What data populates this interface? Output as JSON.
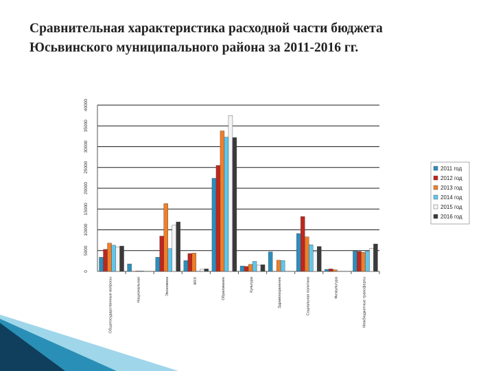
{
  "slide": {
    "title_line1": "Сравнительная характеристика расходной части бюджета",
    "title_line2": "Юсьвинского муниципального района за 2011-2016 гг."
  },
  "colors": {
    "series": [
      "#2d8ebd",
      "#c0261c",
      "#ef7f2a",
      "#5ec7ee",
      "#f4f4f4",
      "#3a3a3a"
    ],
    "grid": "#1a1a1a",
    "corner": [
      "#0f3f5c",
      "#2a8fb6",
      "#9fd6ea"
    ]
  },
  "chart_data": {
    "type": "bar",
    "title": "",
    "xlabel": "",
    "ylabel": "",
    "ylim": [
      0,
      40000
    ],
    "yticks": [
      0,
      5000,
      10000,
      15000,
      20000,
      25000,
      30000,
      35000,
      40000
    ],
    "ytick_labels": [
      "0",
      "5000",
      "10000",
      "15000",
      "20000",
      "25000",
      "30000",
      "35000",
      "40000"
    ],
    "grid": true,
    "legend_position": "right",
    "categories": [
      "Общегосударственные вопросы",
      "Национальная",
      "Экономика",
      "ЖКХ",
      "Образование",
      "Культура",
      "Здравоохранение",
      "Социальная политика",
      "Физкультура",
      "Межбюджетные трансферты"
    ],
    "series": [
      {
        "name": "2011 год",
        "values": [
          3400,
          1800,
          3400,
          2600,
          22400,
          1300,
          4700,
          9100,
          500,
          4900
        ]
      },
      {
        "name": "2012 год",
        "values": [
          5300,
          0,
          8500,
          4300,
          25500,
          1200,
          0,
          13200,
          600,
          4800
        ]
      },
      {
        "name": "2013 год",
        "values": [
          6800,
          100,
          16300,
          4400,
          33800,
          1700,
          2700,
          8300,
          400,
          4600
        ]
      },
      {
        "name": "2014 год",
        "values": [
          6300,
          100,
          5500,
          0,
          32300,
          2400,
          2600,
          6400,
          0,
          4900
        ]
      },
      {
        "name": "2015 год",
        "values": [
          5900,
          0,
          11100,
          500,
          37500,
          1500,
          0,
          4700,
          0,
          5500
        ]
      },
      {
        "name": "2016 год",
        "values": [
          6100,
          0,
          11900,
          600,
          32200,
          1600,
          0,
          6000,
          0,
          6600
        ]
      }
    ]
  }
}
